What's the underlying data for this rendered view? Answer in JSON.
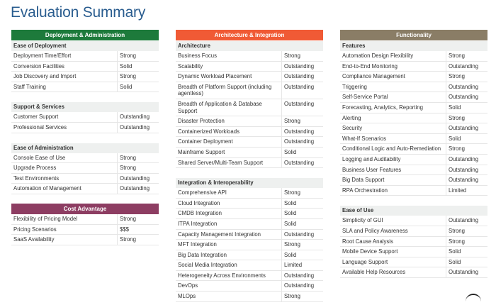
{
  "title": "Evaluation Summary",
  "columns": [
    {
      "sections": [
        {
          "header": "Deployment & Administration",
          "color": "#1d7a3b",
          "groups": [
            {
              "title": "Ease of Deployment",
              "rows": [
                [
                  "Deployment Time/Effort",
                  "Strong"
                ],
                [
                  "Conversion Facilities",
                  "Solid"
                ],
                [
                  "Job Discovery and Import",
                  "Strong"
                ],
                [
                  "Staff Training",
                  "Solid"
                ]
              ]
            },
            {
              "title": "Support & Services",
              "rows": [
                [
                  "Customer Support",
                  "Outstanding"
                ],
                [
                  "Professional Services",
                  "Outstanding"
                ]
              ]
            },
            {
              "title": "Ease of Administration",
              "rows": [
                [
                  "Console Ease of Use",
                  "Strong"
                ],
                [
                  "Upgrade Process",
                  "Strong"
                ],
                [
                  "Test Environments",
                  "Outstanding"
                ],
                [
                  "Automation of Management",
                  "Outstanding"
                ]
              ]
            }
          ]
        },
        {
          "header": "Cost Advantage",
          "color": "#8d3d62",
          "groups": [
            {
              "title": "",
              "rows": [
                [
                  "Flexibility of Pricing Model",
                  "Strong"
                ],
                [
                  "Pricing Scenarios",
                  "$$$"
                ],
                [
                  "SaaS Availability",
                  "Strong"
                ]
              ]
            }
          ]
        }
      ]
    },
    {
      "sections": [
        {
          "header": "Architecture & Integration",
          "color": "#f05a35",
          "groups": [
            {
              "title": "Architecture",
              "rows": [
                [
                  "Business Focus",
                  "Strong"
                ],
                [
                  "Scalability",
                  "Outstanding"
                ],
                [
                  "Dynamic Workload Placement",
                  "Outstanding"
                ],
                [
                  "Breadth of Platform Support (including agentless)",
                  "Outstanding"
                ],
                [
                  "Breadth of Application & Database Support",
                  "Outstanding"
                ],
                [
                  "Disaster Protection",
                  "Strong"
                ],
                [
                  "Containerized Workloads",
                  "Outstanding"
                ],
                [
                  "Container Deployment",
                  "Outstanding"
                ],
                [
                  "Mainframe Support",
                  "Solid"
                ],
                [
                  "Shared Server/Multi-Team Support",
                  "Outstanding"
                ]
              ]
            },
            {
              "title": "Integration & Interoperability",
              "rows": [
                [
                  "Comprehensive API",
                  "Strong"
                ],
                [
                  "Cloud Integration",
                  "Solid"
                ],
                [
                  "CMDB Integration",
                  "Solid"
                ],
                [
                  "ITPA Integration",
                  "Solid"
                ],
                [
                  "Capacity Management Integration",
                  "Outstanding"
                ],
                [
                  "MFT Integration",
                  "Strong"
                ],
                [
                  "Big Data Integration",
                  "Solid"
                ],
                [
                  "Social Media Integration",
                  "Limited"
                ],
                [
                  "Heterogeneity Across Environments",
                  "Outstanding"
                ],
                [
                  "DevOps",
                  "Outstanding"
                ],
                [
                  "MLOps",
                  "Strong"
                ]
              ]
            }
          ]
        }
      ]
    },
    {
      "sections": [
        {
          "header": "Functionality",
          "color": "#8a7d66",
          "groups": [
            {
              "title": "Features",
              "rows": [
                [
                  "Automation Design Flexibility",
                  "Strong"
                ],
                [
                  "End-to-End Monitoring",
                  "Outstanding"
                ],
                [
                  "Compliance Management",
                  "Strong"
                ],
                [
                  "Triggering",
                  "Outstanding"
                ],
                [
                  "Self-Service Portal",
                  "Outstanding"
                ],
                [
                  "Forecasting, Analytics, Reporting",
                  "Solid"
                ],
                [
                  "Alerting",
                  "Strong"
                ],
                [
                  "Security",
                  "Outstanding"
                ],
                [
                  "What-If Scenarios",
                  "Solid"
                ],
                [
                  "Conditional Logic and Auto-Remediation",
                  "Strong"
                ],
                [
                  "Logging and Auditability",
                  "Outstanding"
                ],
                [
                  "Business User Features",
                  "Outstanding"
                ],
                [
                  "Big Data Support",
                  "Outstanding"
                ],
                [
                  "RPA Orchestration",
                  "Limited"
                ]
              ]
            },
            {
              "title": "Ease of Use",
              "rows": [
                [
                  "Simplicity of GUI",
                  "Outstanding"
                ],
                [
                  "SLA and Policy Awareness",
                  "Strong"
                ],
                [
                  "Root Cause Analysis",
                  "Strong"
                ],
                [
                  "Mobile Device Support",
                  "Solid"
                ],
                [
                  "Language Support",
                  "Solid"
                ],
                [
                  "Available Help Resources",
                  "Outstanding"
                ]
              ]
            }
          ]
        }
      ]
    }
  ]
}
